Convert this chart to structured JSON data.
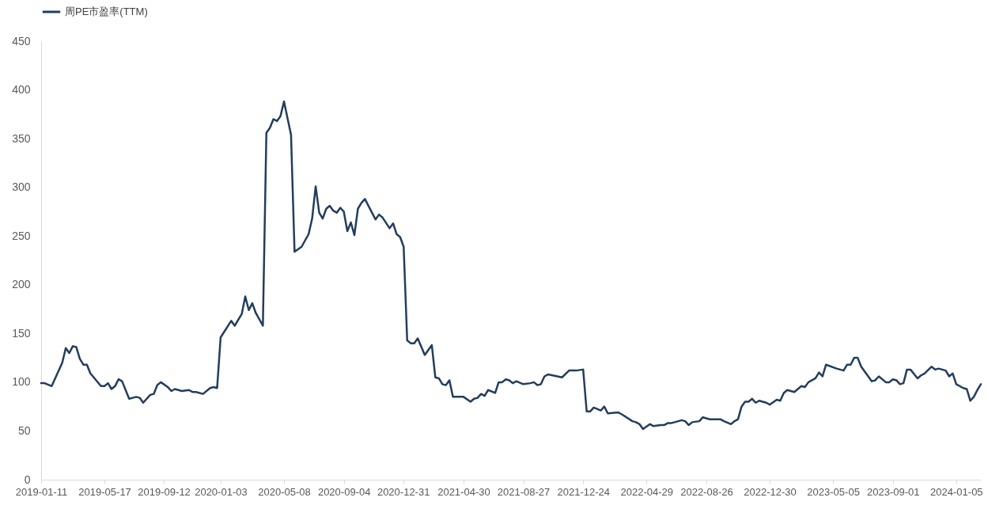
{
  "chart_data": {
    "type": "line",
    "legend": "top",
    "x": [
      "2019-01-11",
      "2019-01-18",
      "2019-02-01",
      "2019-02-22",
      "2019-03-01",
      "2019-03-08",
      "2019-03-15",
      "2019-03-22",
      "2019-03-29",
      "2019-04-05",
      "2019-04-12",
      "2019-04-19",
      "2019-05-10",
      "2019-05-17",
      "2019-05-24",
      "2019-05-31",
      "2019-06-07",
      "2019-06-14",
      "2019-06-21",
      "2019-07-05",
      "2019-07-12",
      "2019-07-19",
      "2019-07-26",
      "2019-08-02",
      "2019-08-16",
      "2019-08-23",
      "2019-08-30",
      "2019-09-06",
      "2019-09-20",
      "2019-09-27",
      "2019-10-04",
      "2019-10-18",
      "2019-11-01",
      "2019-11-08",
      "2019-11-15",
      "2019-11-29",
      "2019-12-13",
      "2019-12-20",
      "2019-12-27",
      "2020-01-03",
      "2020-01-24",
      "2020-01-31",
      "2020-02-14",
      "2020-02-21",
      "2020-02-28",
      "2020-03-06",
      "2020-03-13",
      "2020-03-27",
      "2020-04-03",
      "2020-04-10",
      "2020-04-17",
      "2020-04-24",
      "2020-05-01",
      "2020-05-08",
      "2020-05-22",
      "2020-05-29",
      "2020-06-12",
      "2020-06-26",
      "2020-07-03",
      "2020-07-10",
      "2020-07-17",
      "2020-07-24",
      "2020-07-31",
      "2020-08-07",
      "2020-08-14",
      "2020-08-21",
      "2020-08-28",
      "2020-09-04",
      "2020-09-11",
      "2020-09-18",
      "2020-09-25",
      "2020-10-02",
      "2020-10-09",
      "2020-10-16",
      "2020-10-30",
      "2020-11-06",
      "2020-11-13",
      "2020-11-20",
      "2020-12-04",
      "2020-12-11",
      "2020-12-18",
      "2020-12-25",
      "2021-01-01",
      "2021-01-08",
      "2021-01-15",
      "2021-01-22",
      "2021-01-29",
      "2021-02-12",
      "2021-02-26",
      "2021-03-05",
      "2021-03-12",
      "2021-03-19",
      "2021-03-26",
      "2021-04-02",
      "2021-04-09",
      "2021-04-30",
      "2021-05-14",
      "2021-05-21",
      "2021-05-28",
      "2021-06-04",
      "2021-06-11",
      "2021-06-18",
      "2021-07-02",
      "2021-07-09",
      "2021-07-16",
      "2021-07-23",
      "2021-07-30",
      "2021-08-06",
      "2021-08-13",
      "2021-08-27",
      "2021-09-10",
      "2021-09-17",
      "2021-09-24",
      "2021-10-01",
      "2021-10-08",
      "2021-10-15",
      "2021-11-12",
      "2021-11-26",
      "2021-12-10",
      "2021-12-24",
      "2021-12-31",
      "2022-01-07",
      "2022-01-14",
      "2022-01-28",
      "2022-02-04",
      "2022-02-11",
      "2022-03-04",
      "2022-03-11",
      "2022-04-01",
      "2022-04-08",
      "2022-04-15",
      "2022-04-22",
      "2022-05-06",
      "2022-05-13",
      "2022-05-27",
      "2022-06-03",
      "2022-06-10",
      "2022-06-17",
      "2022-07-08",
      "2022-07-15",
      "2022-07-22",
      "2022-07-29",
      "2022-08-12",
      "2022-08-19",
      "2022-09-02",
      "2022-09-23",
      "2022-09-30",
      "2022-10-14",
      "2022-10-21",
      "2022-10-28",
      "2022-11-04",
      "2022-11-11",
      "2022-11-18",
      "2022-11-25",
      "2022-12-02",
      "2022-12-09",
      "2022-12-23",
      "2022-12-30",
      "2023-01-13",
      "2023-01-20",
      "2023-01-27",
      "2023-02-03",
      "2023-02-17",
      "2023-03-03",
      "2023-03-10",
      "2023-03-17",
      "2023-03-31",
      "2023-04-07",
      "2023-04-14",
      "2023-04-21",
      "2023-05-12",
      "2023-05-26",
      "2023-06-02",
      "2023-06-09",
      "2023-06-16",
      "2023-06-23",
      "2023-06-30",
      "2023-07-21",
      "2023-07-28",
      "2023-08-04",
      "2023-08-18",
      "2023-08-25",
      "2023-09-01",
      "2023-09-08",
      "2023-09-15",
      "2023-09-22",
      "2023-09-29",
      "2023-10-06",
      "2023-10-20",
      "2023-10-27",
      "2023-11-03",
      "2023-11-17",
      "2023-11-24",
      "2023-12-01",
      "2023-12-15",
      "2023-12-22",
      "2023-12-29",
      "2024-01-05",
      "2024-01-19",
      "2024-01-26",
      "2024-02-02",
      "2024-02-09",
      "2024-02-16",
      "2024-02-23"
    ],
    "series": [
      {
        "name": "周PE市盈率(TTM)",
        "color": "#243d5c",
        "values": [
          99,
          99,
          96,
          120,
          135,
          130,
          137,
          136,
          124,
          118,
          118,
          109,
          96,
          96,
          99,
          93,
          96,
          103,
          101,
          83,
          84,
          85,
          84,
          79,
          87,
          88,
          97,
          100,
          95,
          91,
          93,
          91,
          92,
          90,
          90,
          88,
          94,
          95,
          94,
          146,
          163,
          158,
          170,
          188,
          174,
          181,
          171,
          158,
          356,
          361,
          370,
          368,
          373,
          388,
          354,
          234,
          239,
          252,
          268,
          301,
          274,
          268,
          278,
          281,
          276,
          274,
          279,
          275,
          255,
          264,
          251,
          278,
          284,
          288,
          274,
          267,
          272,
          269,
          258,
          263,
          252,
          249,
          239,
          143,
          140,
          140,
          145,
          128,
          138,
          105,
          104,
          98,
          97,
          102,
          85,
          85,
          80,
          83,
          84,
          88,
          86,
          92,
          89,
          100,
          100,
          103,
          102,
          99,
          101,
          98,
          99,
          100,
          97,
          98,
          106,
          108,
          105,
          112,
          112,
          113,
          70,
          70,
          74,
          71,
          75,
          68,
          69,
          67,
          60,
          59,
          57,
          52,
          57,
          55,
          56,
          56,
          58,
          58,
          61,
          60,
          56,
          59,
          60,
          64,
          62,
          62,
          60,
          57,
          60,
          62,
          75,
          80,
          80,
          83,
          79,
          81,
          79,
          77,
          82,
          81,
          89,
          92,
          90,
          96,
          95,
          100,
          104,
          110,
          106,
          118,
          114,
          112,
          118,
          118,
          125,
          125,
          116,
          101,
          102,
          106,
          100,
          100,
          103,
          102,
          98,
          99,
          113,
          113,
          104,
          107,
          109,
          116,
          113,
          114,
          112,
          106,
          109,
          98,
          94,
          93,
          81,
          85,
          92,
          98
        ]
      }
    ],
    "xlim": [
      "2019-01-11",
      "2024-02-23"
    ],
    "xticks": [
      "2019-01-11",
      "2019-05-17",
      "2019-09-12",
      "2020-01-03",
      "2020-05-08",
      "2020-09-04",
      "2020-12-31",
      "2021-04-30",
      "2021-08-27",
      "2021-12-24",
      "2022-04-29",
      "2022-08-26",
      "2022-12-30",
      "2023-05-05",
      "2023-09-01",
      "2024-01-05"
    ],
    "ylim": [
      0,
      450
    ],
    "yticks": [
      0,
      50,
      100,
      150,
      200,
      250,
      300,
      350,
      400,
      450
    ]
  }
}
